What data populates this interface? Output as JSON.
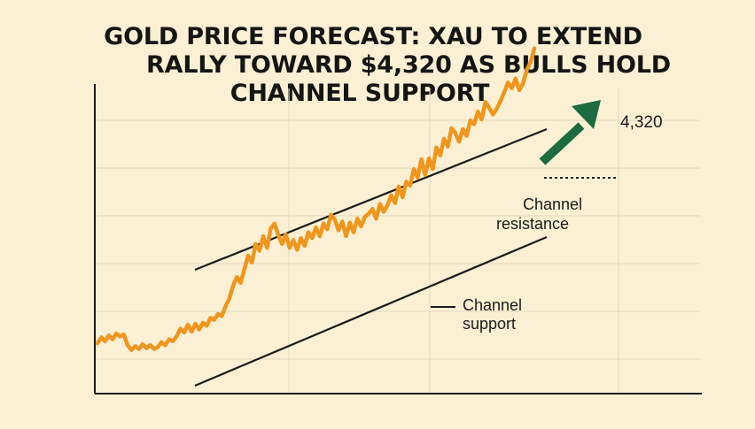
{
  "headline": {
    "line1": "GOLD PRICE FORECAST: XAU TO EXTEND",
    "line2": "RALLY TOWARD $4,320 AS BULLS HOLD",
    "line3": "CHANNEL SUPPORT"
  },
  "colors": {
    "background": "#fbf0d4",
    "price_line": "#f0961e",
    "arrow": "#1d6b3f",
    "channel_lines": "#1a1a1a",
    "grid": "#e6dcc3"
  },
  "chart_data": {
    "type": "line",
    "title": "GOLD PRICE FORECAST: XAU TO EXTEND RALLY TOWARD $4,320 AS BULLS HOLD CHANNEL SUPPORT",
    "xlabel": "",
    "ylabel": "",
    "grid": true,
    "series": [
      {
        "values": [
          20,
          26,
          22,
          28,
          24,
          30,
          27,
          29,
          18,
          13,
          17,
          14,
          19,
          15,
          18,
          14,
          16,
          21,
          18,
          24,
          22,
          27,
          35,
          31,
          39,
          32,
          40,
          34,
          41,
          38,
          46,
          44,
          50,
          48,
          58,
          66,
          79,
          88,
          82,
          96,
          110,
          103,
          122,
          115,
          130,
          118,
          138,
          143,
          131,
          122,
          132,
          118,
          126,
          116,
          128,
          120,
          134,
          128,
          139,
          130,
          143,
          137,
          152,
          147,
          136,
          145,
          130,
          144,
          134,
          148,
          140,
          150,
          153,
          158,
          148,
          163,
          155,
          162,
          172,
          164,
          181,
          170,
          186,
          182,
          199,
          190,
          209,
          193,
          210,
          199,
          221,
          213,
          230,
          222,
          241,
          236,
          227,
          240,
          233,
          249,
          245,
          258,
          250,
          268,
          262,
          255,
          261,
          269,
          278,
          288,
          282,
          292,
          280,
          287,
          301,
          309,
          323
        ]
      }
    ],
    "target_level": "4,320",
    "annotations": [
      "4,320",
      "Channel resistance",
      "Channel support"
    ]
  },
  "annotations": {
    "target": "4,320",
    "resistance_line1": "Channel",
    "resistance_line2": "resistance",
    "support_line1": "Channel",
    "support_line2": "support"
  }
}
